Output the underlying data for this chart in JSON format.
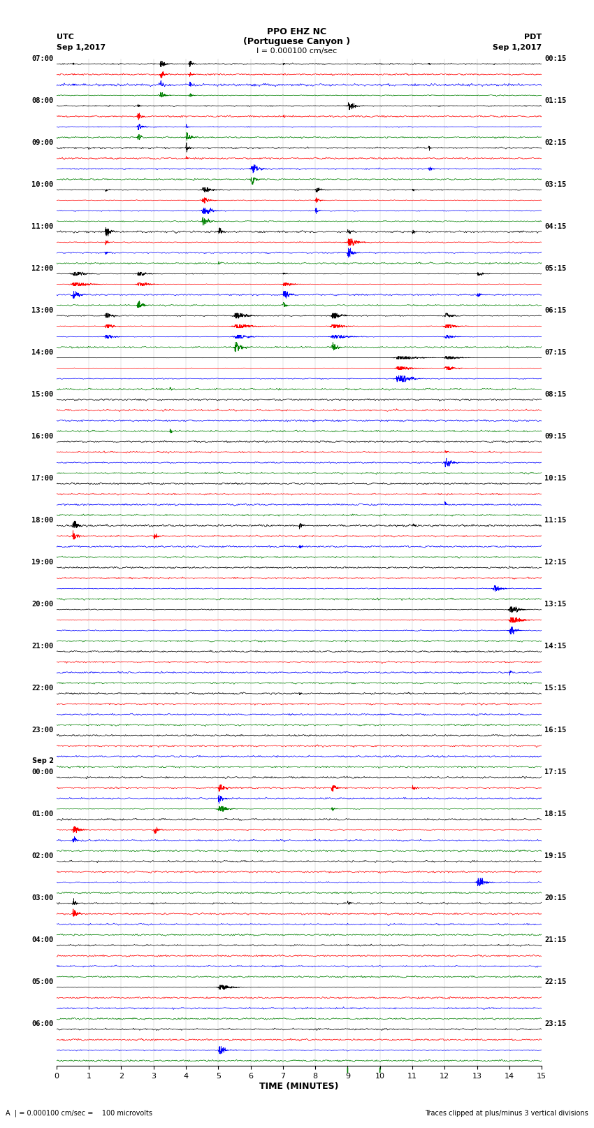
{
  "title_line1": "PPO EHZ NC",
  "title_line2": "(Portuguese Canyon )",
  "title_line3": "I = 0.000100 cm/sec",
  "utc_label": "UTC",
  "utc_date": "Sep 1,2017",
  "pdt_label": "PDT",
  "pdt_date": "Sep 1,2017",
  "xlabel": "TIME (MINUTES)",
  "footer_left": "A  | = 0.000100 cm/sec =    100 microvolts",
  "footer_right": "Traces clipped at plus/minus 3 vertical divisions",
  "left_times": [
    "07:00",
    "08:00",
    "09:00",
    "10:00",
    "11:00",
    "12:00",
    "13:00",
    "14:00",
    "15:00",
    "16:00",
    "17:00",
    "18:00",
    "19:00",
    "20:00",
    "21:00",
    "22:00",
    "23:00",
    "00:00",
    "01:00",
    "02:00",
    "03:00",
    "04:00",
    "05:00",
    "06:00"
  ],
  "right_times": [
    "00:15",
    "01:15",
    "02:15",
    "03:15",
    "04:15",
    "05:15",
    "06:15",
    "07:15",
    "08:15",
    "09:15",
    "10:15",
    "11:15",
    "12:15",
    "13:15",
    "14:15",
    "15:15",
    "16:15",
    "17:15",
    "18:15",
    "19:15",
    "20:15",
    "21:15",
    "22:15",
    "23:15"
  ],
  "sep2_label_row": 17,
  "sep2_label": "Sep 2",
  "colors": [
    "black",
    "red",
    "blue",
    "green"
  ],
  "n_rows": 24,
  "traces_per_row": 4,
  "minutes": 15,
  "trace_amplitude": 0.42,
  "noise_level": 0.08,
  "bg_color": "white"
}
